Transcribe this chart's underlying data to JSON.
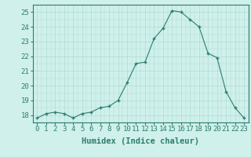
{
  "x": [
    0,
    1,
    2,
    3,
    4,
    5,
    6,
    7,
    8,
    9,
    10,
    11,
    12,
    13,
    14,
    15,
    16,
    17,
    18,
    19,
    20,
    21,
    22,
    23
  ],
  "y": [
    17.8,
    18.1,
    18.2,
    18.1,
    17.8,
    18.1,
    18.2,
    18.5,
    18.6,
    19.0,
    20.2,
    21.5,
    21.6,
    23.2,
    23.9,
    25.1,
    25.0,
    24.5,
    24.0,
    22.2,
    21.9,
    19.6,
    18.5,
    17.8
  ],
  "line_color": "#2e7d6e",
  "marker_color": "#2e7d6e",
  "bg_color": "#cff0eb",
  "grid_color": "#b0dbd5",
  "xlabel": "Humidex (Indice chaleur)",
  "ylabel_ticks": [
    18,
    19,
    20,
    21,
    22,
    23,
    24,
    25
  ],
  "ylim": [
    17.5,
    25.5
  ],
  "xlim": [
    -0.5,
    23.5
  ],
  "tick_fontsize": 6.5,
  "label_fontsize": 7.5
}
